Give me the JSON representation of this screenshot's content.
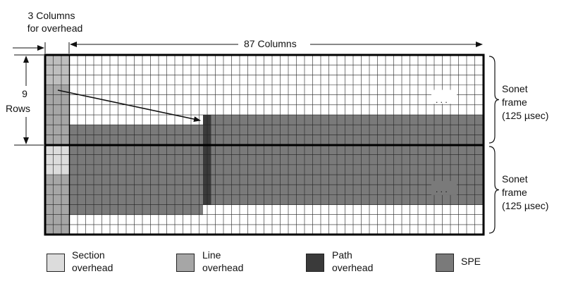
{
  "labels": {
    "overhead_columns_line1": "3 Columns",
    "overhead_columns_line2": "for overhead",
    "columns": "87 Columns",
    "rows_number": "9",
    "rows_word": "Rows",
    "ellipsis_top": ". . .",
    "ellipsis_bottom": ". . ."
  },
  "frames": [
    {
      "line1": "Sonet",
      "line2": "frame",
      "line3": "(125 µsec)"
    },
    {
      "line1": "Sonet",
      "line2": "frame",
      "line3": "(125 µsec)"
    }
  ],
  "legend": [
    {
      "id": "section",
      "line1": "Section",
      "line2": "overhead",
      "color": "#dcdcdc"
    },
    {
      "id": "line",
      "line1": "Line",
      "line2": "overhead",
      "color": "#a6a6a6"
    },
    {
      "id": "path",
      "line1": "Path",
      "line2": "overhead",
      "color": "#3a3a3a"
    },
    {
      "id": "spe",
      "line1": "SPE",
      "line2": "",
      "color": "#7a7a7a"
    }
  ]
}
